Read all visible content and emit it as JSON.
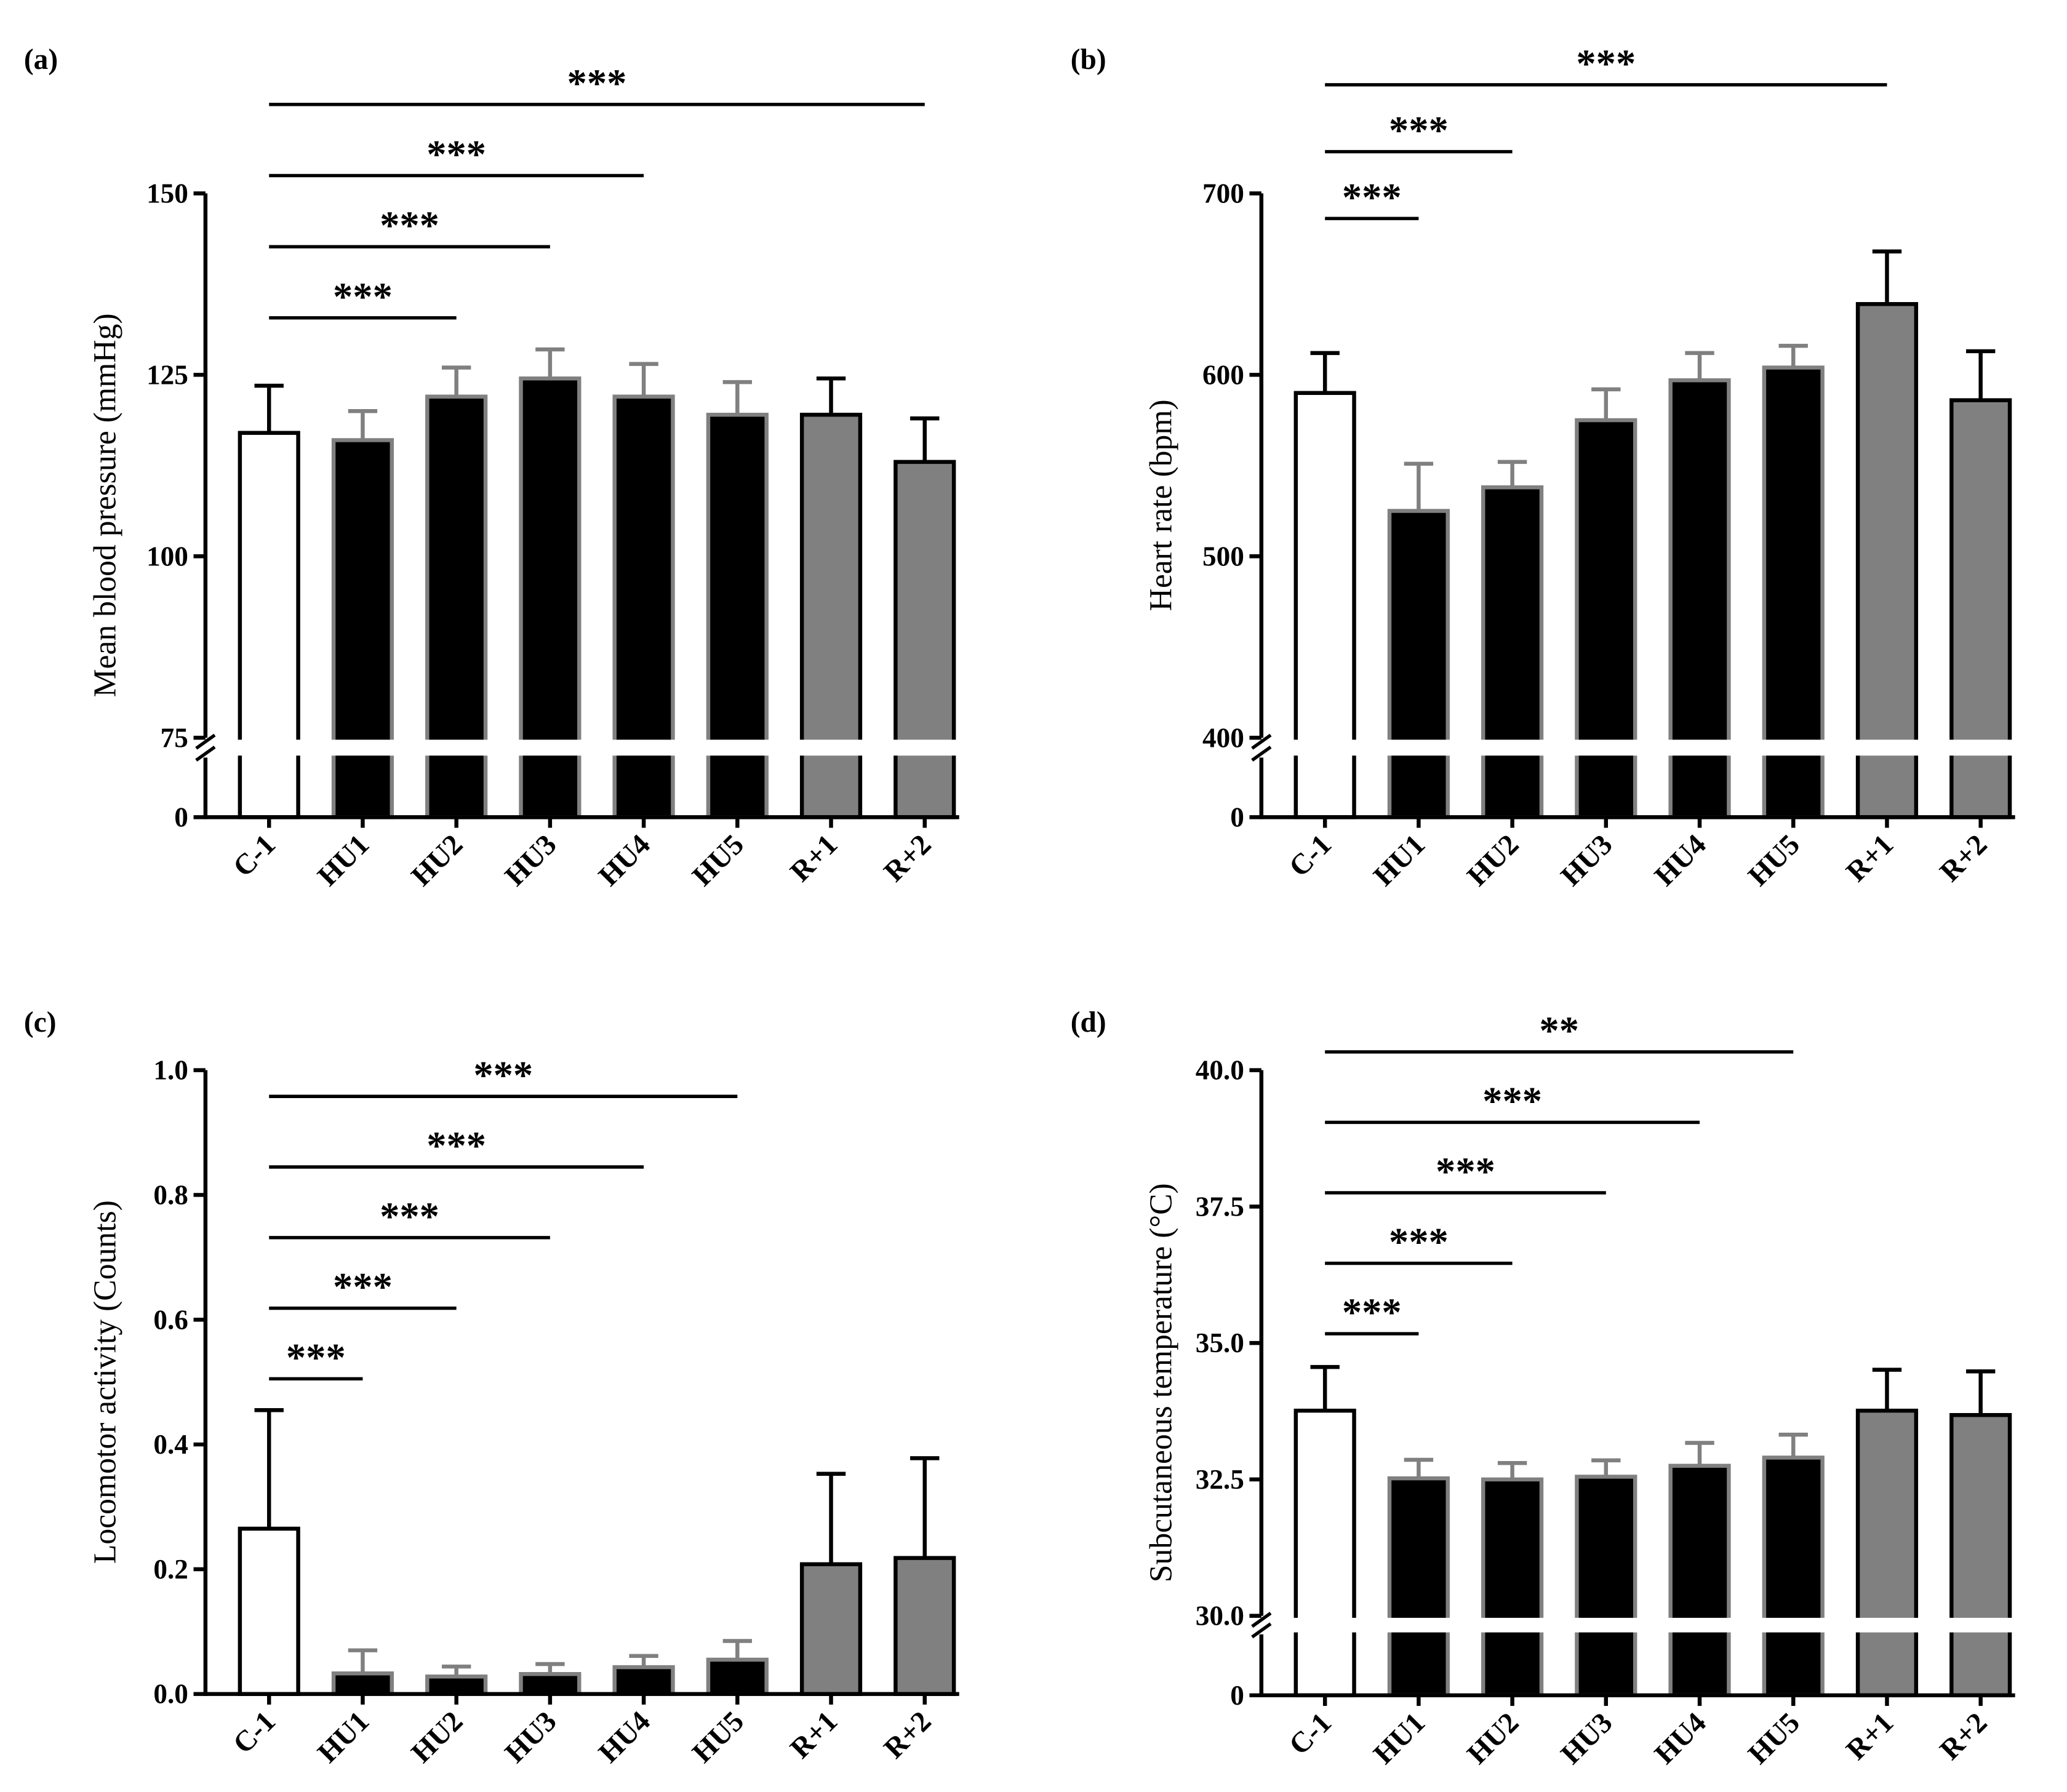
{
  "chart_data": [
    {
      "type": "bar",
      "panel": "(a)",
      "ylabel": "Mean blood pressure (mmHg)",
      "categories": [
        "C-1",
        "HU1",
        "HU2",
        "HU3",
        "HU4",
        "HU5",
        "R+1",
        "R+2"
      ],
      "values": [
        117,
        116,
        122,
        124.5,
        122,
        119.5,
        119.5,
        113
      ],
      "errors": [
        6.5,
        4,
        4,
        4,
        4.5,
        4.5,
        5,
        6
      ],
      "colors": [
        "#ffffff",
        "#000000",
        "#000000",
        "#000000",
        "#000000",
        "#000000",
        "#808080",
        "#808080"
      ],
      "edge_colors": [
        "#000000",
        "#808080",
        "#808080",
        "#808080",
        "#808080",
        "#808080",
        "#000000",
        "#000000"
      ],
      "ylim": [
        75,
        150
      ],
      "yticks": [
        0,
        75,
        100,
        125,
        150
      ],
      "axis_break": true,
      "comparisons": [
        {
          "from": "C-1",
          "to": "HU2",
          "label": "***"
        },
        {
          "from": "C-1",
          "to": "HU3",
          "label": "***"
        },
        {
          "from": "C-1",
          "to": "HU4",
          "label": "***"
        },
        {
          "from": "C-1",
          "to": "R+2",
          "label": "***"
        }
      ]
    },
    {
      "type": "bar",
      "panel": "(b)",
      "ylabel": "Heart rate (bpm)",
      "categories": [
        "C-1",
        "HU1",
        "HU2",
        "HU3",
        "HU4",
        "HU5",
        "R+1",
        "R+2"
      ],
      "values": [
        590,
        525,
        538,
        575,
        597,
        604,
        639,
        586
      ],
      "errors": [
        22,
        26,
        14,
        17,
        15,
        12,
        29,
        27
      ],
      "colors": [
        "#ffffff",
        "#000000",
        "#000000",
        "#000000",
        "#000000",
        "#000000",
        "#808080",
        "#808080"
      ],
      "edge_colors": [
        "#000000",
        "#808080",
        "#808080",
        "#808080",
        "#808080",
        "#808080",
        "#000000",
        "#000000"
      ],
      "ylim": [
        400,
        700
      ],
      "yticks": [
        0,
        400,
        500,
        600,
        700
      ],
      "axis_break": true,
      "comparisons": [
        {
          "from": "C-1",
          "to": "HU1",
          "label": "***"
        },
        {
          "from": "C-1",
          "to": "HU2",
          "label": "***"
        },
        {
          "from": "C-1",
          "to": "R+1",
          "label": "***"
        }
      ]
    },
    {
      "type": "bar",
      "panel": "(c)",
      "ylabel": "Locomotor activity (Counts)",
      "categories": [
        "C-1",
        "HU1",
        "HU2",
        "HU3",
        "HU4",
        "HU5",
        "R+1",
        "R+2"
      ],
      "values": [
        0.265,
        0.033,
        0.028,
        0.032,
        0.043,
        0.055,
        0.208,
        0.218
      ],
      "errors": [
        0.19,
        0.037,
        0.016,
        0.016,
        0.018,
        0.03,
        0.145,
        0.16
      ],
      "colors": [
        "#ffffff",
        "#000000",
        "#000000",
        "#000000",
        "#000000",
        "#000000",
        "#808080",
        "#808080"
      ],
      "edge_colors": [
        "#000000",
        "#808080",
        "#808080",
        "#808080",
        "#808080",
        "#808080",
        "#000000",
        "#000000"
      ],
      "ylim": [
        0,
        1
      ],
      "yticks": [
        {
          "value": 0,
          "label": "0.0"
        },
        0.2,
        0.4,
        0.6,
        0.8,
        {
          "value": 1,
          "label": "1.0"
        }
      ],
      "axis_break": false,
      "comparisons": [
        {
          "from": "C-1",
          "to": "HU1",
          "label": "***"
        },
        {
          "from": "C-1",
          "to": "HU2",
          "label": "***"
        },
        {
          "from": "C-1",
          "to": "HU3",
          "label": "***"
        },
        {
          "from": "C-1",
          "to": "HU4",
          "label": "***"
        },
        {
          "from": "C-1",
          "to": "HU5",
          "label": "***"
        }
      ]
    },
    {
      "type": "bar",
      "panel": "(d)",
      "ylabel": "Subcutaneous temperature (°C)",
      "categories": [
        "C-1",
        "HU1",
        "HU2",
        "HU3",
        "HU4",
        "HU5",
        "R+1",
        "R+2"
      ],
      "values": [
        33.76,
        32.52,
        32.5,
        32.55,
        32.75,
        32.9,
        33.76,
        33.68
      ],
      "errors": [
        0.8,
        0.34,
        0.3,
        0.3,
        0.42,
        0.42,
        0.75,
        0.8
      ],
      "colors": [
        "#ffffff",
        "#000000",
        "#000000",
        "#000000",
        "#000000",
        "#000000",
        "#808080",
        "#808080"
      ],
      "edge_colors": [
        "#000000",
        "#808080",
        "#808080",
        "#808080",
        "#808080",
        "#808080",
        "#000000",
        "#000000"
      ],
      "ylim": [
        30,
        40
      ],
      "yticks": [
        0,
        {
          "value": 30,
          "label": "30.0"
        },
        32.5,
        {
          "value": 35,
          "label": "35.0"
        },
        37.5,
        {
          "value": 40,
          "label": "40.0"
        }
      ],
      "axis_break": true,
      "comparisons": [
        {
          "from": "C-1",
          "to": "HU1",
          "label": "***"
        },
        {
          "from": "C-1",
          "to": "HU2",
          "label": "***"
        },
        {
          "from": "C-1",
          "to": "HU3",
          "label": "***"
        },
        {
          "from": "C-1",
          "to": "HU4",
          "label": "***"
        },
        {
          "from": "C-1",
          "to": "HU5",
          "label": "**"
        }
      ]
    }
  ]
}
